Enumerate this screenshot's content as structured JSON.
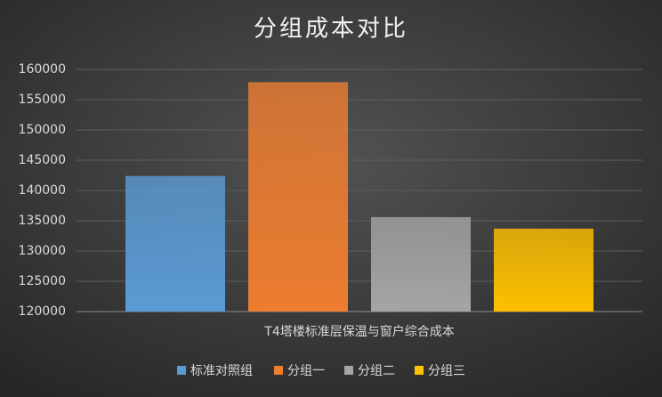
{
  "chart_data": {
    "type": "bar",
    "title": "分组成本对比",
    "categories": [
      "T4塔楼标准层保温与窗户综合成本"
    ],
    "series": [
      {
        "name": "标准对照组",
        "color": "#5b9bd5",
        "values": [
          142400
        ]
      },
      {
        "name": "分组一",
        "color": "#ed7d31",
        "values": [
          157900
        ]
      },
      {
        "name": "分组二",
        "color": "#a5a5a5",
        "values": [
          135600
        ]
      },
      {
        "name": "分组三",
        "color": "#ffc000",
        "values": [
          133700
        ]
      }
    ],
    "ylim": [
      120000,
      160000
    ],
    "yticks": [
      120000,
      125000,
      130000,
      135000,
      140000,
      145000,
      150000,
      155000,
      160000
    ],
    "grid": true,
    "legend": "bottom"
  }
}
